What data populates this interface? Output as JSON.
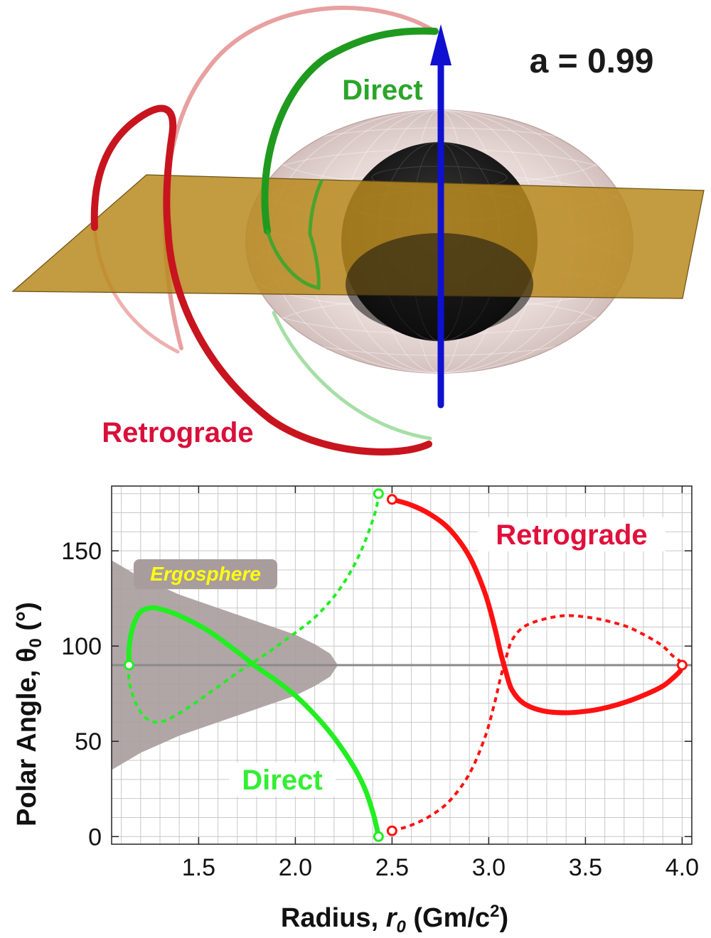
{
  "figure": {
    "spin_label": "a = 0.99",
    "scene_direct_label": "Direct",
    "scene_retrograde_label": "Retrograde"
  },
  "colors": {
    "direct_3d": "#1f9a1f",
    "retrograde_3d": "#c8141e",
    "direct_plot": "#22ee22",
    "retrograde_plot": "#ff1111",
    "spin_axis": "#1010d0",
    "plane": "#b88a1e",
    "ergosphere": "#a89c9c",
    "horizon": "#111111",
    "label_red": "#e0103c",
    "label_green": "#33ee33",
    "ergo_text": "#ffff10"
  },
  "chart_data": {
    "type": "line",
    "xlabel_main": "Radius, ",
    "xlabel_var": "r",
    "xlabel_sub": "0",
    "xlabel_unit_a": " (Gm/c",
    "xlabel_unit_sup": "2",
    "xlabel_unit_b": ")",
    "ylabel_main": "Polar Angle, θ",
    "ylabel_sub": "0",
    "ylabel_unit": " (°)",
    "xlim": [
      1.05,
      4.05
    ],
    "ylim": [
      -4,
      184
    ],
    "xticks": [
      1.5,
      2.0,
      2.5,
      3.0,
      3.5,
      4.0
    ],
    "xtick_labels": [
      "1.5",
      "2.0",
      "2.5",
      "3.0",
      "3.5",
      "4.0"
    ],
    "yticks": [
      0,
      50,
      100,
      150
    ],
    "ytick_labels": [
      "0",
      "50",
      "100",
      "150"
    ],
    "grid": true,
    "equator_line": 90,
    "ergosphere_label": "Ergosphere",
    "ergosphere_boundary": [
      [
        1.0,
        145
      ],
      [
        1.2,
        136
      ],
      [
        1.4,
        127
      ],
      [
        1.6,
        120
      ],
      [
        1.8,
        113
      ],
      [
        2.0,
        106
      ],
      [
        2.1,
        101
      ],
      [
        2.18,
        96
      ],
      [
        2.22,
        90
      ],
      [
        2.18,
        84
      ],
      [
        2.1,
        79
      ],
      [
        2.0,
        74
      ],
      [
        1.8,
        67
      ],
      [
        1.6,
        60
      ],
      [
        1.4,
        53
      ],
      [
        1.2,
        44
      ],
      [
        1.0,
        35
      ]
    ],
    "series": [
      {
        "name": "Direct",
        "style": "solid",
        "points": [
          [
            1.14,
            90
          ],
          [
            1.14,
            98
          ],
          [
            1.15,
            106
          ],
          [
            1.17,
            113
          ],
          [
            1.2,
            118
          ],
          [
            1.25,
            120
          ],
          [
            1.3,
            119.5
          ],
          [
            1.4,
            116
          ],
          [
            1.55,
            108
          ],
          [
            1.7,
            97
          ],
          [
            1.8,
            89
          ],
          [
            1.9,
            82
          ],
          [
            2.0,
            74
          ],
          [
            2.1,
            64
          ],
          [
            2.2,
            52
          ],
          [
            2.3,
            37
          ],
          [
            2.36,
            25
          ],
          [
            2.4,
            13
          ],
          [
            2.42,
            5
          ],
          [
            2.43,
            0
          ]
        ]
      },
      {
        "name": "Direct",
        "style": "dashed",
        "points": [
          [
            1.14,
            90
          ],
          [
            1.14,
            82
          ],
          [
            1.16,
            74
          ],
          [
            1.19,
            67
          ],
          [
            1.23,
            62
          ],
          [
            1.28,
            60
          ],
          [
            1.33,
            61
          ],
          [
            1.42,
            66
          ],
          [
            1.55,
            75
          ],
          [
            1.7,
            86
          ],
          [
            1.85,
            96
          ],
          [
            2.0,
            107
          ],
          [
            2.1,
            115
          ],
          [
            2.2,
            126
          ],
          [
            2.28,
            138
          ],
          [
            2.34,
            150
          ],
          [
            2.39,
            163
          ],
          [
            2.42,
            173
          ],
          [
            2.43,
            180
          ]
        ]
      },
      {
        "name": "Retrograde",
        "style": "solid",
        "points": [
          [
            2.5,
            177
          ],
          [
            2.6,
            174
          ],
          [
            2.7,
            169
          ],
          [
            2.8,
            161
          ],
          [
            2.9,
            147
          ],
          [
            2.98,
            128
          ],
          [
            3.03,
            110
          ],
          [
            3.06,
            97
          ],
          [
            3.09,
            86
          ],
          [
            3.12,
            77
          ],
          [
            3.18,
            70
          ],
          [
            3.28,
            66
          ],
          [
            3.4,
            65
          ],
          [
            3.52,
            66
          ],
          [
            3.62,
            68
          ],
          [
            3.72,
            71
          ],
          [
            3.82,
            75
          ],
          [
            3.9,
            79
          ],
          [
            3.95,
            83
          ],
          [
            3.99,
            87
          ],
          [
            4.0,
            90
          ]
        ]
      },
      {
        "name": "Retrograde",
        "style": "dashed",
        "points": [
          [
            2.5,
            3
          ],
          [
            2.6,
            6
          ],
          [
            2.7,
            11
          ],
          [
            2.8,
            19
          ],
          [
            2.9,
            33
          ],
          [
            2.98,
            52
          ],
          [
            3.03,
            70
          ],
          [
            3.06,
            83
          ],
          [
            3.09,
            94
          ],
          [
            3.12,
            103
          ],
          [
            3.18,
            110
          ],
          [
            3.28,
            114
          ],
          [
            3.4,
            116
          ],
          [
            3.52,
            115
          ],
          [
            3.62,
            113
          ],
          [
            3.72,
            110
          ],
          [
            3.82,
            105
          ],
          [
            3.9,
            100
          ],
          [
            3.95,
            95
          ],
          [
            3.99,
            92
          ],
          [
            4.0,
            90
          ]
        ]
      }
    ],
    "endpoints": [
      {
        "series": "Direct",
        "x": 1.14,
        "y": 90
      },
      {
        "series": "Direct",
        "x": 2.43,
        "y": 0
      },
      {
        "series": "Direct",
        "x": 2.43,
        "y": 180
      },
      {
        "series": "Retrograde",
        "x": 4.0,
        "y": 90
      },
      {
        "series": "Retrograde",
        "x": 2.5,
        "y": 177
      },
      {
        "series": "Retrograde",
        "x": 2.5,
        "y": 3
      }
    ],
    "annotations": [
      {
        "text": "Retrograde",
        "color": "red"
      },
      {
        "text": "Direct",
        "color": "green"
      }
    ]
  }
}
